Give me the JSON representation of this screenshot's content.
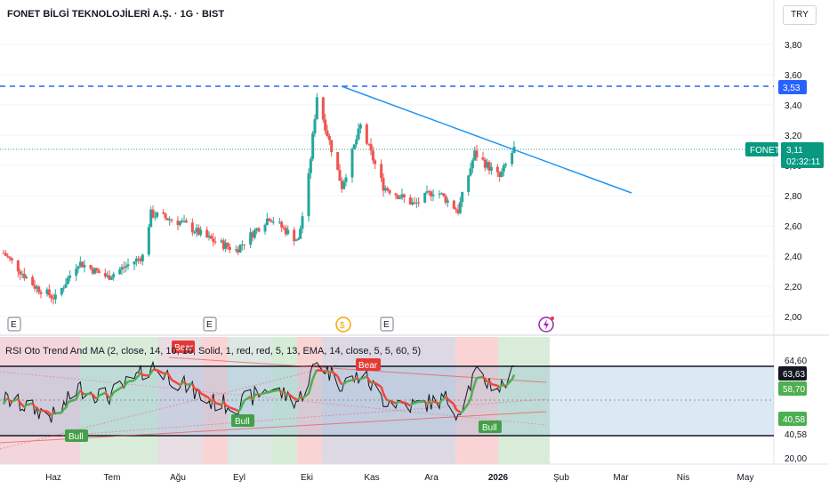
{
  "header": {
    "title": "FONET BİLGİ TEKNOLOJİLERİ A.Ş. · 1G · BIST",
    "currency": "TRY"
  },
  "price_axis": {
    "ticks": [
      "3,80",
      "3,60",
      "3,40",
      "3,20",
      "3,00",
      "2,80",
      "2,60",
      "2,40",
      "2,20",
      "2,00"
    ]
  },
  "rsi_axis": {
    "ticks": [
      "64,60",
      "20,00"
    ]
  },
  "time_axis": {
    "labels": [
      "Haz",
      "Tem",
      "Ağu",
      "Eyl",
      "Eki",
      "Kas",
      "Ara",
      "2026",
      "Şub",
      "Mar",
      "Nis",
      "May"
    ]
  },
  "price_labels": {
    "resistance": "3,53",
    "symbol": "FONET",
    "last": "3,11",
    "countdown": "02:32:11"
  },
  "rsi_labels": {
    "upper": "63,63",
    "ma": "58,70",
    "lower_value": "40,58",
    "lower_level": "40,58"
  },
  "indicator_title": "RSI Oto Trend And MA (2, close, 14, 10, 10, Solid, 1, red, red, 5, 13, EMA, 14, close, 5, 5, 60, 5)",
  "event_markers": [
    "E",
    "E",
    "$",
    "E"
  ],
  "signal_labels": [
    "Bear",
    "Bear",
    "Bull",
    "Bull",
    "Bull"
  ],
  "colors": {
    "up": "#26a69a",
    "down": "#ef5350",
    "trendline": "#2196f3",
    "resistance": "#2962ff",
    "bull": "#43a047",
    "bear": "#e53935",
    "rsi_line": "#131722",
    "rsi_ma_up": "#4caf50",
    "rsi_ma_down": "#f44336"
  },
  "chart_data": [
    {
      "type": "candlestick",
      "title": "FONET BİLGİ TEKNOLOJİLERİ A.Ş. · 1G · BIST",
      "ylim": [
        1.9,
        3.9
      ],
      "price_path": [
        [
          "2025-05-26",
          2.42
        ],
        [
          "2025-06-10",
          2.2
        ],
        [
          "2025-06-20",
          2.12
        ],
        [
          "2025-07-01",
          2.36
        ],
        [
          "2025-07-15",
          2.26
        ],
        [
          "2025-08-01",
          2.4
        ],
        [
          "2025-08-05",
          2.68
        ],
        [
          "2025-08-20",
          2.62
        ],
        [
          "2025-09-01",
          2.52
        ],
        [
          "2025-09-15",
          2.44
        ],
        [
          "2025-10-01",
          2.66
        ],
        [
          "2025-10-15",
          2.5
        ],
        [
          "2025-10-20",
          2.92
        ],
        [
          "2025-10-24",
          3.46
        ],
        [
          "2025-11-05",
          2.86
        ],
        [
          "2025-11-14",
          3.26
        ],
        [
          "2025-11-25",
          2.86
        ],
        [
          "2025-12-10",
          2.74
        ],
        [
          "2025-12-20",
          2.84
        ],
        [
          "2025-12-31",
          2.7
        ],
        [
          "2026-01-08",
          3.08
        ],
        [
          "2026-01-20",
          2.92
        ],
        [
          "2026-01-27",
          3.11
        ]
      ],
      "resistance": 3.53,
      "last": 3.11,
      "trendline": [
        [
          "2025-10-24",
          3.53
        ],
        [
          "2026-03-06",
          2.82
        ]
      ]
    },
    {
      "type": "line",
      "title": "RSI Oto Trend And MA",
      "ylim": [
        20,
        70
      ],
      "levels": [
        63.63,
        40.58
      ],
      "ma_last": 58.7,
      "rsi_path": [
        [
          "2025-05-26",
          47
        ],
        [
          "2025-06-05",
          44
        ],
        [
          "2025-06-20",
          39
        ],
        [
          "2025-07-01",
          52
        ],
        [
          "2025-07-15",
          48
        ],
        [
          "2025-07-30",
          57
        ],
        [
          "2025-08-05",
          62
        ],
        [
          "2025-08-20",
          54
        ],
        [
          "2025-09-01",
          46
        ],
        [
          "2025-09-15",
          44
        ],
        [
          "2025-10-01",
          52
        ],
        [
          "2025-10-15",
          46
        ],
        [
          "2025-10-24",
          64
        ],
        [
          "2025-11-05",
          54
        ],
        [
          "2025-11-15",
          58
        ],
        [
          "2025-11-25",
          47
        ],
        [
          "2025-12-10",
          44
        ],
        [
          "2025-12-25",
          47
        ],
        [
          "2025-12-31",
          41
        ],
        [
          "2026-01-08",
          58
        ],
        [
          "2026-01-20",
          52
        ],
        [
          "2026-01-27",
          59
        ]
      ]
    }
  ]
}
